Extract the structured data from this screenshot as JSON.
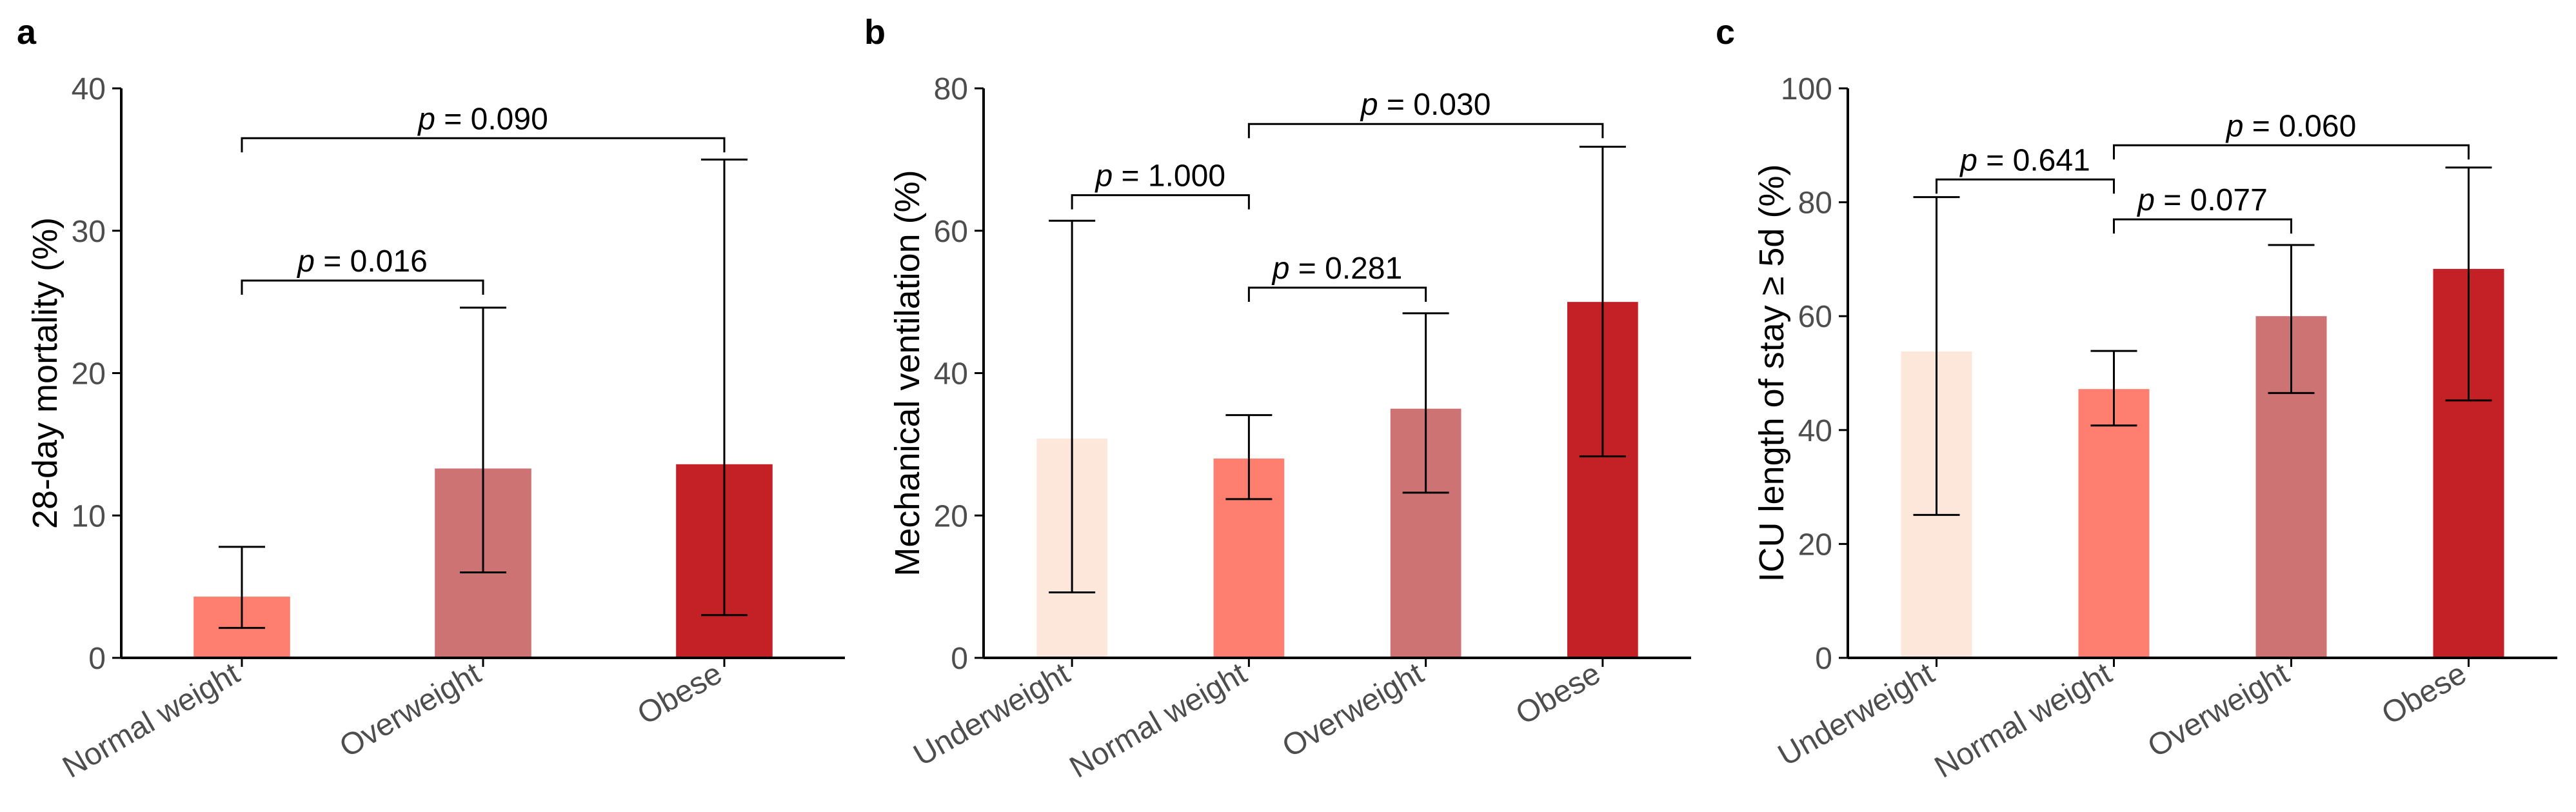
{
  "chart_data": [
    {
      "type": "bar",
      "panel_label": "a",
      "title": "",
      "xlabel": "",
      "ylabel": "28-day mortality (%)",
      "ylim": [
        0,
        40
      ],
      "yticks": [
        "0",
        "10",
        "20",
        "30",
        "40"
      ],
      "categories": [
        "Normal weight",
        "Overweight",
        "Obese"
      ],
      "values": [
        4.3,
        13.3,
        13.6
      ],
      "error_low": [
        2.1,
        6.0,
        3.0
      ],
      "error_high": [
        7.8,
        24.6,
        35.0
      ],
      "bar_colors": [
        "#fe7f70",
        "#cd7373",
        "#c42127"
      ],
      "grid": false,
      "comparisons": [
        {
          "from": 0,
          "to": 1,
          "y": 26.5,
          "label": "p = 0.016"
        },
        {
          "from": 0,
          "to": 2,
          "y": 36.5,
          "label": "p = 0.090"
        }
      ]
    },
    {
      "type": "bar",
      "panel_label": "b",
      "title": "",
      "xlabel": "",
      "ylabel": "Mechanical ventilation (%)",
      "ylim": [
        0,
        80
      ],
      "yticks": [
        "0",
        "20",
        "40",
        "60",
        "80"
      ],
      "categories": [
        "Underweight",
        "Normal weight",
        "Overweight",
        "Obese"
      ],
      "values": [
        30.8,
        28.0,
        35.0,
        50.0
      ],
      "error_low": [
        9.2,
        22.3,
        23.2,
        28.3
      ],
      "error_high": [
        61.4,
        34.1,
        48.4,
        71.8
      ],
      "bar_colors": [
        "#fde7da",
        "#fe7f70",
        "#cd7373",
        "#c42127"
      ],
      "grid": false,
      "comparisons": [
        {
          "from": 0,
          "to": 1,
          "y": 65.0,
          "label": "p = 1.000"
        },
        {
          "from": 1,
          "to": 2,
          "y": 52.0,
          "label": "p = 0.281"
        },
        {
          "from": 1,
          "to": 3,
          "y": 75.0,
          "label": "p = 0.030"
        }
      ]
    },
    {
      "type": "bar",
      "panel_label": "c",
      "title": "",
      "xlabel": "",
      "ylabel": "ICU length of stay ≥ 5d (%)",
      "ylim": [
        0,
        100
      ],
      "yticks": [
        "0",
        "20",
        "40",
        "60",
        "80",
        "100"
      ],
      "categories": [
        "Underweight",
        "Normal weight",
        "Overweight",
        "Obese"
      ],
      "values": [
        53.8,
        47.2,
        60.0,
        68.3
      ],
      "error_low": [
        25.1,
        40.8,
        46.5,
        45.2
      ],
      "error_high": [
        80.9,
        53.9,
        72.5,
        86.1
      ],
      "bar_colors": [
        "#fde7da",
        "#fe7f70",
        "#cd7373",
        "#c42127"
      ],
      "grid": false,
      "comparisons": [
        {
          "from": 0,
          "to": 1,
          "y": 84.0,
          "label": "p = 0.641"
        },
        {
          "from": 1,
          "to": 2,
          "y": 77.0,
          "label": "p = 0.077"
        },
        {
          "from": 1,
          "to": 3,
          "y": 90.0,
          "label": "p = 0.060"
        }
      ]
    }
  ]
}
